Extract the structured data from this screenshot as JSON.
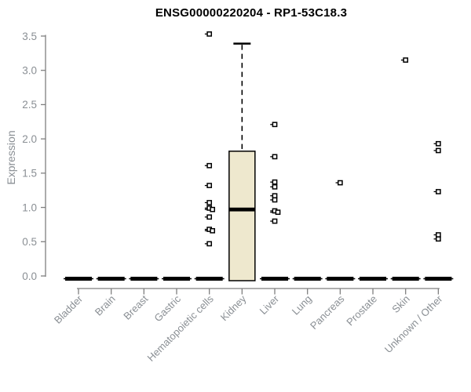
{
  "title": "ENSG00000220204 - RP1-53C18.3",
  "ylabel": "Expression",
  "chart_data": {
    "type": "boxplot",
    "title": "ENSG00000220204 - RP1-53C18.3",
    "xlabel": "",
    "ylabel": "Expression",
    "ylim": [
      0.0,
      3.5
    ],
    "yticks": [
      0.0,
      0.5,
      1.0,
      1.5,
      2.0,
      2.5,
      3.0,
      3.5
    ],
    "grid": false,
    "legend": null,
    "categories": [
      "Bladder",
      "Brain",
      "Breast",
      "Gastric",
      "Hematopoietic cells",
      "Kidney",
      "Liver",
      "Lung",
      "Pancreas",
      "Prostate",
      "Skin",
      "Unknown / Other"
    ],
    "boxes": [
      {
        "category": "Bladder",
        "q1": 0,
        "median": 0,
        "q3": 0,
        "whisker_low": 0,
        "whisker_high": 0,
        "outliers": []
      },
      {
        "category": "Brain",
        "q1": 0,
        "median": 0,
        "q3": 0,
        "whisker_low": 0,
        "whisker_high": 0,
        "outliers": []
      },
      {
        "category": "Breast",
        "q1": 0,
        "median": 0,
        "q3": 0,
        "whisker_low": 0,
        "whisker_high": 0,
        "outliers": []
      },
      {
        "category": "Gastric",
        "q1": 0,
        "median": 0,
        "q3": 0,
        "whisker_low": 0,
        "whisker_high": 0,
        "outliers": []
      },
      {
        "category": "Hematopoietic cells",
        "q1": 0,
        "median": 0,
        "q3": 0,
        "whisker_low": 0,
        "whisker_high": 0,
        "outliers": [
          3.53,
          1.61,
          1.32,
          1.07,
          0.99,
          0.97,
          0.86,
          0.68,
          0.66,
          0.47
        ]
      },
      {
        "category": "Kidney",
        "q1": 0,
        "median": 0.97,
        "q3": 1.82,
        "whisker_low": 0,
        "whisker_high": 3.39,
        "outliers": []
      },
      {
        "category": "Liver",
        "q1": 0,
        "median": 0,
        "q3": 0,
        "whisker_low": 0,
        "whisker_high": 0,
        "outliers": [
          2.21,
          1.74,
          1.37,
          1.3,
          1.17,
          1.11,
          0.95,
          0.93,
          0.8
        ]
      },
      {
        "category": "Lung",
        "q1": 0,
        "median": 0,
        "q3": 0,
        "whisker_low": 0,
        "whisker_high": 0,
        "outliers": []
      },
      {
        "category": "Pancreas",
        "q1": 0,
        "median": 0,
        "q3": 0,
        "whisker_low": 0,
        "whisker_high": 0,
        "outliers": [
          1.36
        ]
      },
      {
        "category": "Prostate",
        "q1": 0,
        "median": 0,
        "q3": 0,
        "whisker_low": 0,
        "whisker_high": 0,
        "outliers": []
      },
      {
        "category": "Skin",
        "q1": 0,
        "median": 0,
        "q3": 0,
        "whisker_low": 0,
        "whisker_high": 0,
        "outliers": [
          3.15
        ]
      },
      {
        "category": "Unknown / Other",
        "q1": 0,
        "median": 0,
        "q3": 0,
        "whisker_low": 0,
        "whisker_high": 0,
        "outliers": [
          1.93,
          1.83,
          1.23,
          0.6,
          0.54
        ]
      }
    ],
    "colors": {
      "background": "#FFFFFF",
      "box_fill": "#EEE8CE",
      "box_border": "#000000",
      "median": "#000000",
      "outlier": "#000000",
      "axis": "#7F7F7F",
      "tick_label": "#8A8F94",
      "title": "#000000"
    }
  }
}
